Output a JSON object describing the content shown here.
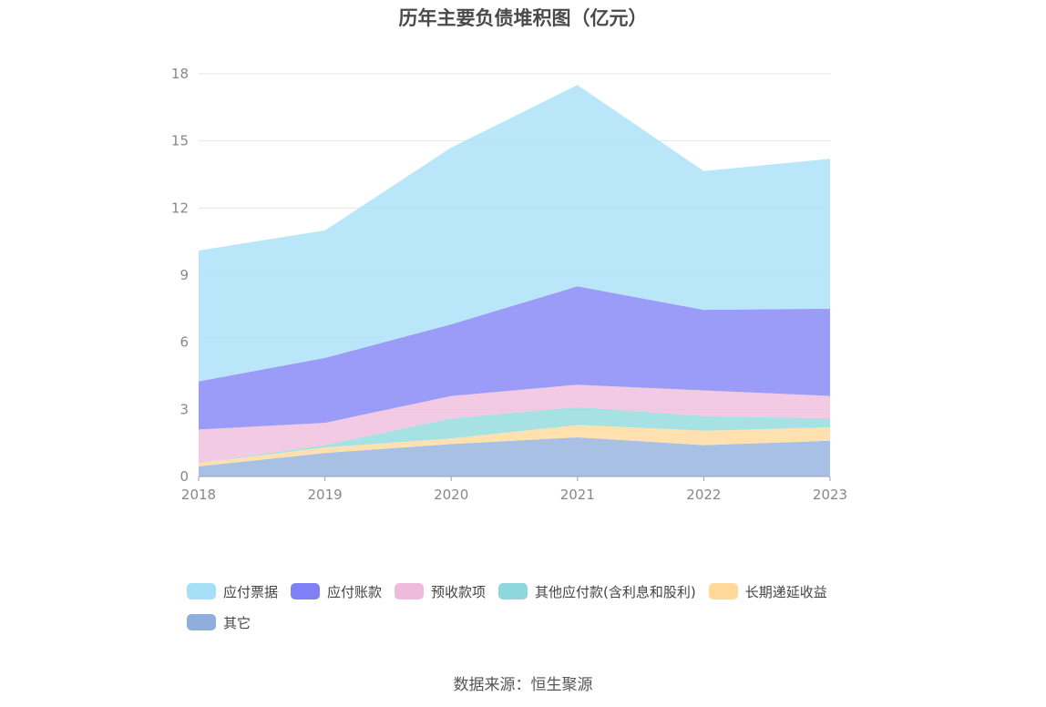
{
  "chart_data": {
    "type": "area",
    "stacked": true,
    "title": "历年主要负债堆积图（亿元）",
    "x": [
      "2018",
      "2019",
      "2020",
      "2021",
      "2022",
      "2023"
    ],
    "yticks": [
      "0",
      "3",
      "6",
      "9",
      "12",
      "15",
      "18"
    ],
    "ylim": [
      0,
      18
    ],
    "grid": true,
    "legend_position": "bottom",
    "series": [
      {
        "name": "其它",
        "color": "#8eaedd",
        "values": [
          0.45,
          1.05,
          1.45,
          1.75,
          1.4,
          1.6
        ]
      },
      {
        "name": "长期递延收益",
        "color": "#ffd99a",
        "values": [
          0.15,
          0.25,
          0.25,
          0.55,
          0.65,
          0.6
        ]
      },
      {
        "name": "其他应付款(含利息和股利)",
        "color": "#8dd8dc",
        "values": [
          0.0,
          0.1,
          0.9,
          0.8,
          0.65,
          0.4
        ]
      },
      {
        "name": "预收款项",
        "color": "#eebbdd",
        "values": [
          1.5,
          1.0,
          1.0,
          1.0,
          1.15,
          1.0
        ]
      },
      {
        "name": "应付账款",
        "color": "#7f80f6",
        "values": [
          2.15,
          2.9,
          3.2,
          4.4,
          3.6,
          3.9
        ]
      },
      {
        "name": "应付票据",
        "color": "#a6dff8",
        "values": [
          5.85,
          5.7,
          7.9,
          9.0,
          6.2,
          6.7
        ]
      }
    ],
    "legend_order": [
      "应付票据",
      "应付账款",
      "预收款项",
      "其他应付款(含利息和股利)",
      "长期递延收益",
      "其它"
    ]
  },
  "source_text": "数据来源：恒生聚源"
}
